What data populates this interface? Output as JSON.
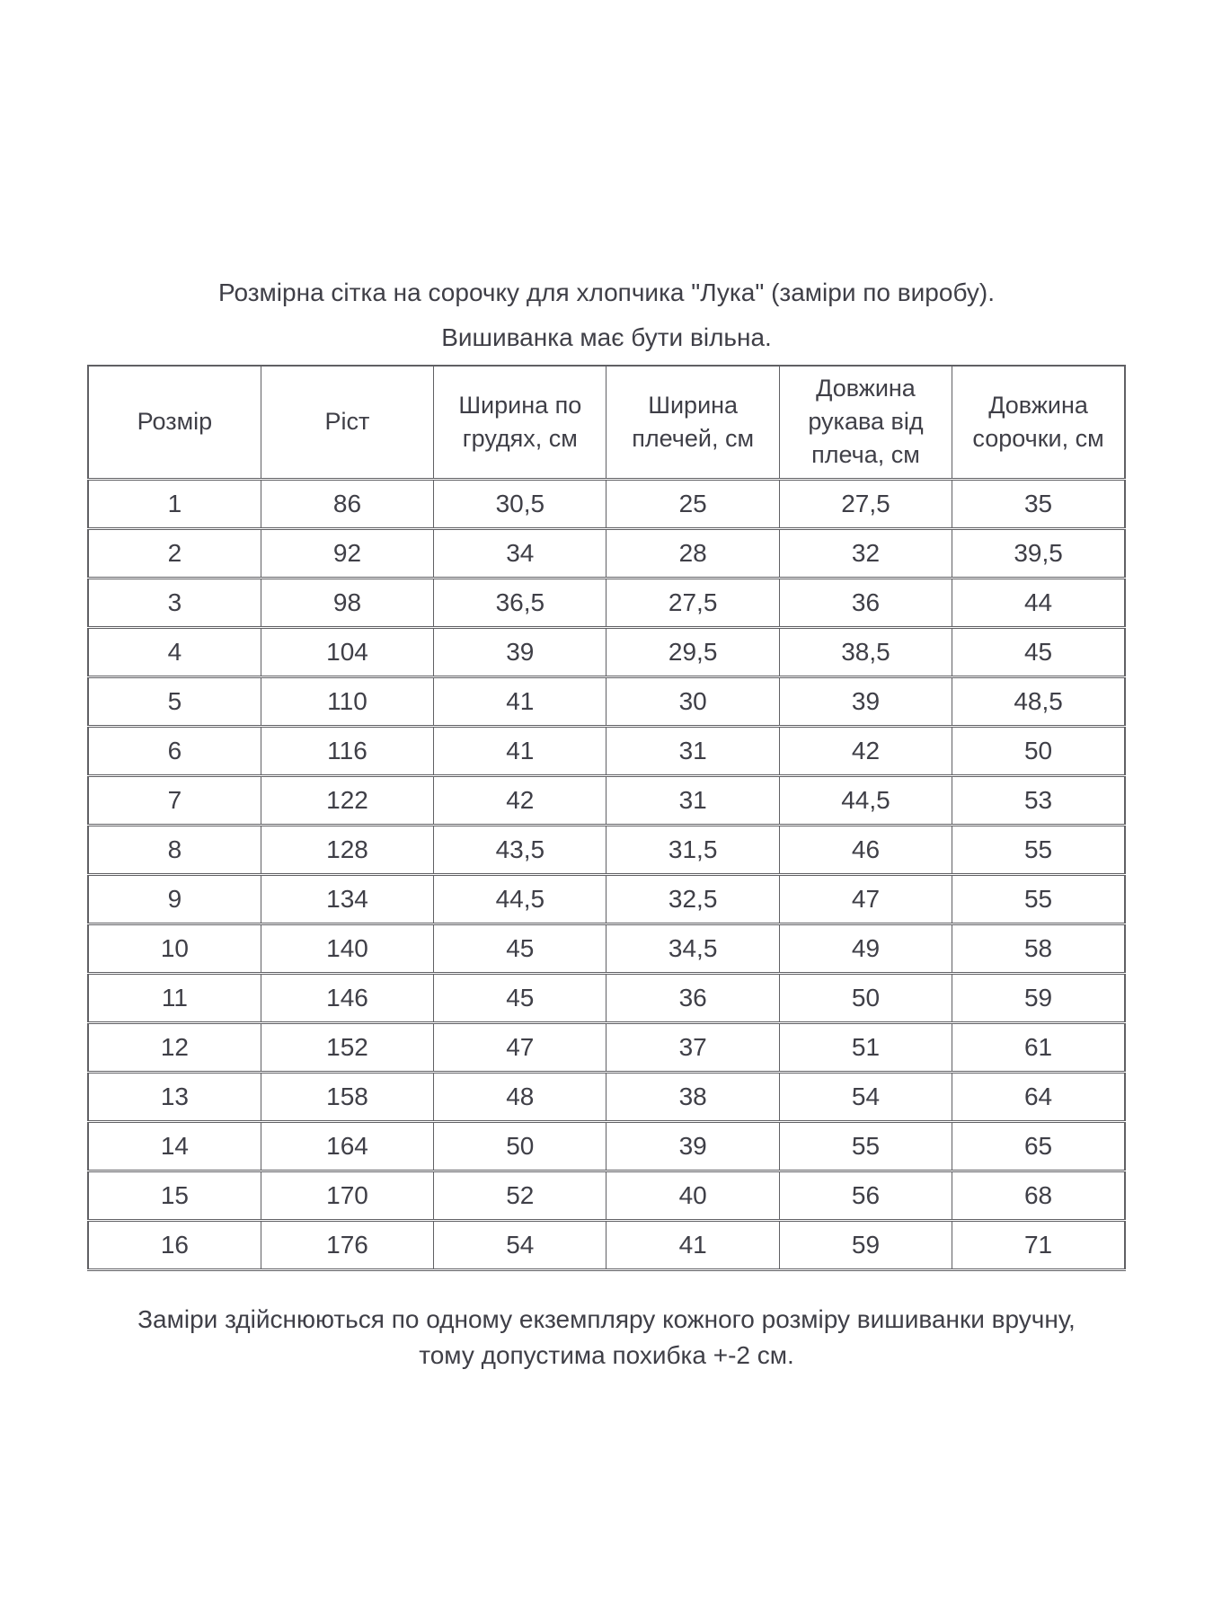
{
  "page": {
    "title": "Розмірна сітка на сорочку для хлопчика \"Лука\" (заміри по виробу).",
    "subtitle": "Вишиванка має бути вільна.",
    "footnote": "Заміри здійснюються  по одному екземпляру кожного розміру вишиванки вручну, тому допустима похибка +-2 см."
  },
  "table": {
    "columns": [
      "Розмір",
      "Ріст",
      "Ширина по грудях, см",
      "Ширина плечей, см",
      "Довжина рукава від плеча, см",
      "Довжина сорочки, см"
    ],
    "rows": [
      [
        "1",
        "86",
        "30,5",
        "25",
        "27,5",
        "35"
      ],
      [
        "2",
        "92",
        "34",
        "28",
        "32",
        "39,5"
      ],
      [
        "3",
        "98",
        "36,5",
        "27,5",
        "36",
        "44"
      ],
      [
        "4",
        "104",
        "39",
        "29,5",
        "38,5",
        "45"
      ],
      [
        "5",
        "110",
        "41",
        "30",
        "39",
        "48,5"
      ],
      [
        "6",
        "116",
        "41",
        "31",
        "42",
        "50"
      ],
      [
        "7",
        "122",
        "42",
        "31",
        "44,5",
        "53"
      ],
      [
        "8",
        "128",
        "43,5",
        "31,5",
        "46",
        "55"
      ],
      [
        "9",
        "134",
        "44,5",
        "32,5",
        "47",
        "55"
      ],
      [
        "10",
        "140",
        "45",
        "34,5",
        "49",
        "58"
      ],
      [
        "11",
        "146",
        "45",
        "36",
        "50",
        "59"
      ],
      [
        "12",
        "152",
        "47",
        "37",
        "51",
        "61"
      ],
      [
        "13",
        "158",
        "48",
        "38",
        "54",
        "64"
      ],
      [
        "14",
        "164",
        "50",
        "39",
        "55",
        "65"
      ],
      [
        "15",
        "170",
        "52",
        "40",
        "56",
        "68"
      ],
      [
        "16",
        "176",
        "54",
        "41",
        "59",
        "71"
      ]
    ]
  },
  "colors": {
    "text": "#3f3f47",
    "border": "#606064",
    "background": "#ffffff"
  }
}
